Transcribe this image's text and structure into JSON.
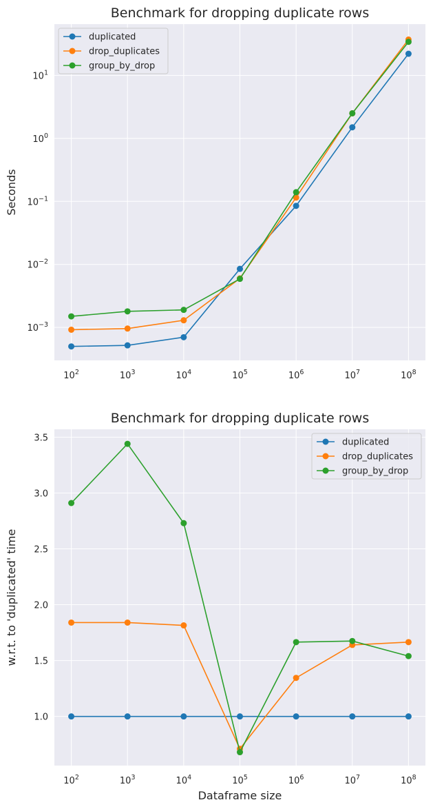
{
  "chart_data": [
    {
      "type": "line",
      "title": "Benchmark for dropping duplicate rows",
      "xlabel": "",
      "ylabel": "Seconds",
      "xscale": "log",
      "yscale": "log",
      "x": [
        100,
        1000,
        10000,
        100000,
        1000000,
        10000000,
        100000000
      ],
      "xticklabels": [
        "10^2",
        "10^3",
        "10^4",
        "10^5",
        "10^6",
        "10^7",
        "10^8"
      ],
      "yticks": [
        0.001,
        0.01,
        0.1,
        1,
        10
      ],
      "yticklabels": [
        "10^-3",
        "10^-2",
        "10^-1",
        "10^0",
        "10^1"
      ],
      "xlim": [
        50,
        200000000
      ],
      "ylim": [
        0.0003,
        65
      ],
      "grid": true,
      "legend_position": "top-left",
      "series": [
        {
          "name": "duplicated",
          "color": "#1f77b4",
          "values": [
            0.0005,
            0.00052,
            0.0007,
            0.0085,
            0.085,
            1.5,
            22
          ]
        },
        {
          "name": "drop_duplicates",
          "color": "#ff7f0e",
          "values": [
            0.00092,
            0.00096,
            0.0013,
            0.006,
            0.115,
            2.5,
            37
          ]
        },
        {
          "name": "group_by_drop",
          "color": "#2ca02c",
          "values": [
            0.0015,
            0.0018,
            0.0019,
            0.0059,
            0.14,
            2.5,
            34
          ]
        }
      ]
    },
    {
      "type": "line",
      "title": "Benchmark for dropping duplicate rows",
      "xlabel": "Dataframe size",
      "ylabel": "w.r.t. to 'duplicated' time",
      "xscale": "log",
      "yscale": "linear",
      "x": [
        100,
        1000,
        10000,
        100000,
        1000000,
        10000000,
        100000000
      ],
      "xticklabels": [
        "10^2",
        "10^3",
        "10^4",
        "10^5",
        "10^6",
        "10^7",
        "10^8"
      ],
      "yticks": [
        1.0,
        1.5,
        2.0,
        2.5,
        3.0,
        3.5
      ],
      "yticklabels": [
        "1.0",
        "1.5",
        "2.0",
        "2.5",
        "3.0",
        "3.5"
      ],
      "xlim": [
        50,
        200000000
      ],
      "ylim": [
        0.56,
        3.57
      ],
      "grid": true,
      "legend_position": "top-right",
      "series": [
        {
          "name": "duplicated",
          "color": "#1f77b4",
          "values": [
            1.0,
            1.0,
            1.0,
            1.0,
            1.0,
            1.0,
            1.0
          ]
        },
        {
          "name": "drop_duplicates",
          "color": "#ff7f0e",
          "values": [
            1.84,
            1.84,
            1.815,
            0.71,
            1.345,
            1.64,
            1.665
          ]
        },
        {
          "name": "group_by_drop",
          "color": "#2ca02c",
          "values": [
            2.91,
            3.44,
            2.73,
            0.68,
            1.665,
            1.675,
            1.54
          ]
        }
      ]
    }
  ]
}
